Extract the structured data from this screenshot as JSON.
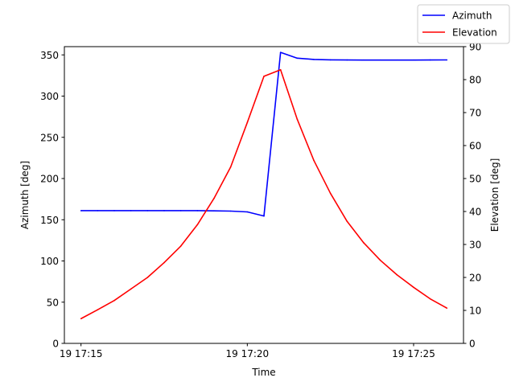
{
  "chart_data": {
    "type": "line",
    "xlabel": "Time",
    "ylabel_left": "Azimuth [deg]",
    "ylabel_right": "Elevation [deg]",
    "x_tick_labels": [
      "19 17:15",
      "19 17:20",
      "19 17:25"
    ],
    "x_ticks_minutes": [
      0,
      5,
      10
    ],
    "xlim_minutes": [
      -0.5,
      11.5
    ],
    "ylim_left": [
      0,
      360
    ],
    "ylim_right": [
      0,
      90
    ],
    "yticks_left": [
      0,
      50,
      100,
      150,
      200,
      250,
      300,
      350
    ],
    "yticks_right": [
      0,
      10,
      20,
      30,
      40,
      50,
      60,
      70,
      80,
      90
    ],
    "grid": false,
    "legend_position": "top-right",
    "series": [
      {
        "name": "Azimuth",
        "axis": "left",
        "color": "#0000ff",
        "x_minutes": [
          0,
          0.5,
          1,
          1.5,
          2,
          2.5,
          3,
          3.5,
          4,
          4.5,
          5,
          5.5,
          6,
          6.5,
          7,
          7.5,
          8,
          8.5,
          9,
          9.5,
          10,
          10.5,
          11
        ],
        "values": [
          161,
          161,
          161,
          161,
          161,
          161,
          161,
          161,
          160.8,
          160.5,
          159.5,
          154.5,
          353,
          346,
          344.5,
          344,
          343.8,
          343.7,
          343.7,
          343.7,
          343.7,
          343.8,
          343.9
        ]
      },
      {
        "name": "Elevation",
        "axis": "right",
        "color": "#ff0000",
        "x_minutes": [
          0,
          0.5,
          1,
          1.5,
          2,
          2.5,
          3,
          3.5,
          4,
          4.5,
          5,
          5.5,
          6,
          6.5,
          7,
          7.5,
          8,
          8.5,
          9,
          9.5,
          10,
          10.5,
          11
        ],
        "values": [
          7.5,
          10.2,
          13,
          16.5,
          20,
          24.5,
          29.5,
          36,
          44,
          53.5,
          67,
          81,
          83,
          68,
          55.5,
          45.5,
          37,
          30.5,
          25.2,
          20.8,
          17,
          13.5,
          10.7
        ]
      }
    ]
  }
}
